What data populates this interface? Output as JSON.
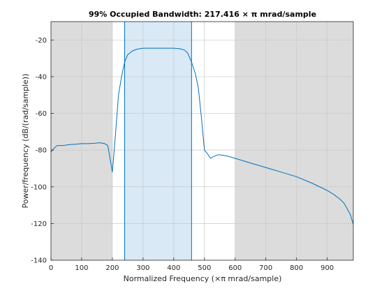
{
  "chart_data": {
    "type": "line",
    "title": "99% Occupied Bandwidth: 217.416 × π mrad/sample",
    "xlabel": "Normalized Frequency  (×π mrad/sample)",
    "ylabel": "Power/frequency (dB/(rad/sample))",
    "xlim": [
      0,
      985
    ],
    "ylim": [
      -140,
      -10
    ],
    "xticks": [
      0,
      100,
      200,
      300,
      400,
      500,
      600,
      700,
      800,
      900
    ],
    "yticks": [
      -140,
      -120,
      -100,
      -80,
      -60,
      -40,
      -20
    ],
    "grid": true,
    "shaded_regions": [
      {
        "x0": 0,
        "x1": 200,
        "role": "out-of-band"
      },
      {
        "x0": 600,
        "x1": 985,
        "role": "out-of-band"
      },
      {
        "x0": 240,
        "x1": 458,
        "role": "occupied-band"
      }
    ],
    "band_edges": [
      240,
      458
    ],
    "colors": {
      "line": "#0072bd",
      "band_fill": "#d9e9f6",
      "outer_fill": "#dcdcdc",
      "grid": "#c8c8c8"
    },
    "series": [
      {
        "x": [
          0,
          10,
          20,
          40,
          60,
          80,
          100,
          120,
          140,
          160,
          175,
          185,
          190,
          195,
          200,
          210,
          220,
          230,
          240,
          250,
          265,
          280,
          300,
          350,
          400,
          420,
          435,
          445,
          458,
          470,
          480,
          490,
          500,
          510,
          520,
          530,
          545,
          560,
          580,
          600,
          650,
          700,
          750,
          800,
          850,
          900,
          920,
          940,
          955,
          965,
          975,
          985
        ],
        "values": [
          -81,
          -79,
          -77.5,
          -77.5,
          -77,
          -76.8,
          -76.5,
          -76.5,
          -76.3,
          -76,
          -76.5,
          -77.5,
          -82,
          -87,
          -92,
          -72,
          -50,
          -40,
          -32,
          -28,
          -26,
          -25,
          -24.5,
          -24.5,
          -24.5,
          -24.8,
          -25.5,
          -27,
          -32,
          -38,
          -46,
          -62,
          -80,
          -82,
          -84.5,
          -83.5,
          -82.5,
          -82.8,
          -83.5,
          -84.5,
          -87,
          -89.5,
          -92,
          -94.5,
          -98,
          -102,
          -104,
          -106.5,
          -109,
          -112,
          -115,
          -120.5
        ]
      }
    ]
  }
}
